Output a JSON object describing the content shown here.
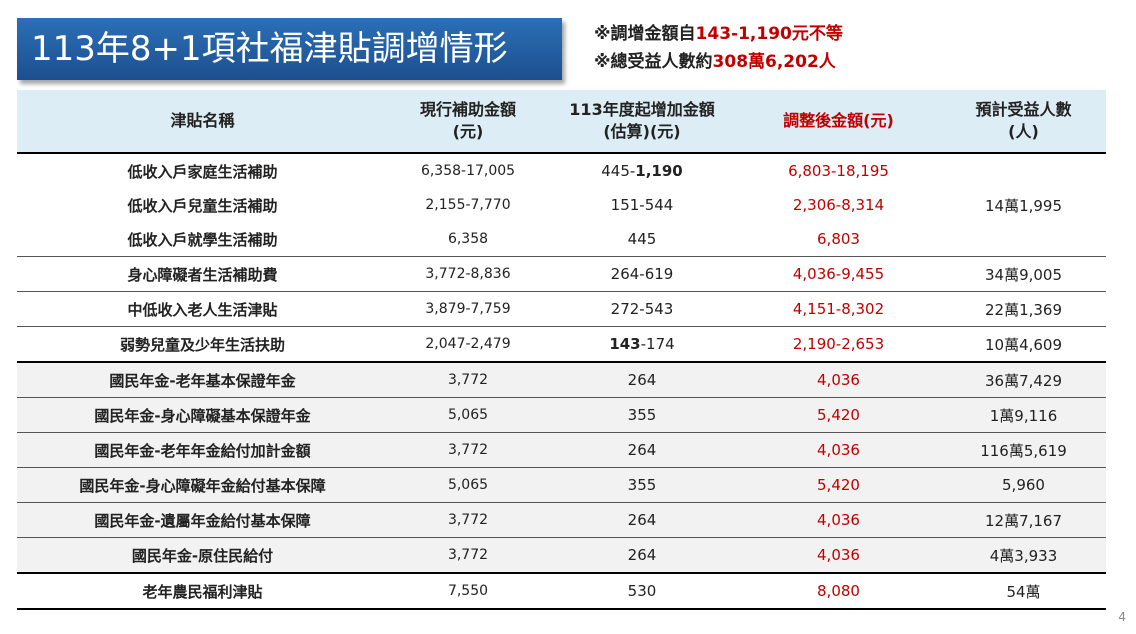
{
  "title": "113年8+1項社福津貼調增情形",
  "notes": {
    "line1_prefix": "※調增金額自",
    "line1_value": "143-1,190元不等",
    "line2_prefix": "※總受益人數約",
    "line2_value": "308萬6,202人"
  },
  "table": {
    "headers": {
      "name": "津貼名稱",
      "current": "現行補助金額\n(元)",
      "increase": "113年度起增加金額\n(估算)(元)",
      "adjusted": "調整後金額(元)",
      "beneficiaries": "預計受益人數\n(人)"
    },
    "rows": [
      {
        "name": "低收入戶家庭生活補助",
        "current": "6,358-17,005",
        "increase_a": "445-",
        "increase_b": "1,190",
        "adjusted": "6,803-18,195",
        "beneficiaries": ""
      },
      {
        "name": "低收入戶兒童生活補助",
        "current": "2,155-7,770",
        "increase": "151-544",
        "adjusted": "2,306-8,314",
        "beneficiaries": "14萬1,995"
      },
      {
        "name": "低收入戶就學生活補助",
        "current": "6,358",
        "increase": "445",
        "adjusted": "6,803",
        "beneficiaries": ""
      },
      {
        "name": "身心障礙者生活補助費",
        "current": "3,772-8,836",
        "increase": "264-619",
        "adjusted": "4,036-9,455",
        "beneficiaries": "34萬9,005"
      },
      {
        "name": "中低收入老人生活津貼",
        "current": "3,879-7,759",
        "increase": "272-543",
        "adjusted": "4,151-8,302",
        "beneficiaries": "22萬1,369"
      },
      {
        "name": "弱勢兒童及少年生活扶助",
        "current": "2,047-2,479",
        "increase_a": "143",
        "increase_b": "-174",
        "adjusted": "2,190-2,653",
        "beneficiaries": "10萬4,609"
      },
      {
        "name": "國民年金-老年基本保證年金",
        "current": "3,772",
        "increase": "264",
        "adjusted": "4,036",
        "beneficiaries": "36萬7,429"
      },
      {
        "name": "國民年金-身心障礙基本保證年金",
        "current": "5,065",
        "increase": "355",
        "adjusted": "5,420",
        "beneficiaries": "1萬9,116"
      },
      {
        "name": "國民年金-老年年金給付加計金額",
        "current": "3,772",
        "increase": "264",
        "adjusted": "4,036",
        "beneficiaries": "116萬5,619"
      },
      {
        "name": "國民年金-身心障礙年金給付基本保障",
        "current": "5,065",
        "increase": "355",
        "adjusted": "5,420",
        "beneficiaries": "5,960"
      },
      {
        "name": "國民年金-遺屬年金給付基本保障",
        "current": "3,772",
        "increase": "264",
        "adjusted": "4,036",
        "beneficiaries": "12萬7,167"
      },
      {
        "name": "國民年金-原住民給付",
        "current": "3,772",
        "increase": "264",
        "adjusted": "4,036",
        "beneficiaries": "4萬3,933"
      },
      {
        "name": "老年農民福利津貼",
        "current": "7,550",
        "increase": "530",
        "adjusted": "8,080",
        "beneficiaries": "54萬"
      }
    ]
  },
  "page_number": "4"
}
